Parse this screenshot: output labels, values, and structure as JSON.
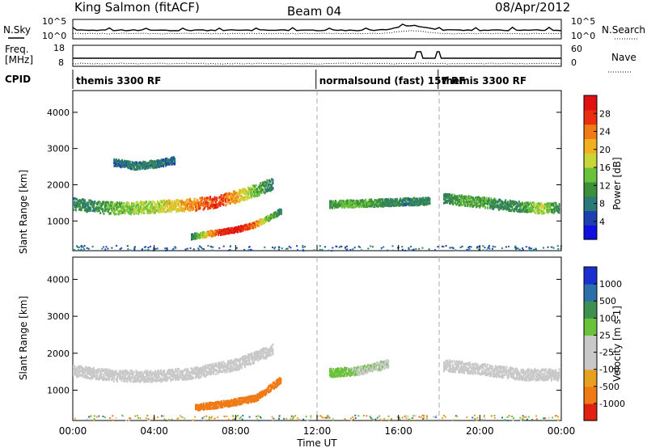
{
  "header": {
    "title": "King Salmon (fitACF)",
    "beam": "Beam 04",
    "date": "08/Apr/2012"
  },
  "aux_panels": {
    "nsky_label": "N.Sky",
    "nsearch_label": "N.Search",
    "freq_label_1": "Freq.",
    "freq_label_2": "[MHz]",
    "nave_label": "Nave",
    "cpid_label": "CPID",
    "noise_ticks_left": [
      "10^5",
      "10^0"
    ],
    "noise_ticks_right": [
      "10^5",
      "10^0"
    ],
    "freq_ticks": [
      "18",
      "8"
    ],
    "nave_ticks": [
      "60",
      "0"
    ]
  },
  "cpid_segments": [
    {
      "label": "themis 3300 RF",
      "start_hour": 0.0
    },
    {
      "label": "normalsound (fast) 157 RF",
      "start_hour": 11.95
    },
    {
      "label": "themis 3300 RF",
      "start_hour": 17.95
    }
  ],
  "axes": {
    "x_label": "Time UT",
    "x_ticks": [
      "00:00",
      "04:00",
      "08:00",
      "12:00",
      "16:00",
      "20:00",
      "00:00"
    ],
    "y_label": "Slant Range [km]",
    "y_ticks": [
      "1000",
      "2000",
      "3000",
      "4000"
    ]
  },
  "colorbars": {
    "power": {
      "label": "Power [dB]",
      "ticks": [
        "4",
        "8",
        "12",
        "16",
        "20",
        "24",
        "28"
      ],
      "colors": [
        "#1010e0",
        "#1e3fb0",
        "#2a7a78",
        "#3d8f3d",
        "#6ac23a",
        "#c8d63a",
        "#f0b020",
        "#f07a15",
        "#e83010",
        "#e01010"
      ]
    },
    "velocity": {
      "label": "Velocity [m s-1]",
      "ticks": [
        "1000",
        "500",
        "100",
        "25",
        "-25",
        "-100",
        "-500",
        "-1000"
      ],
      "colors": [
        "#1a2fd0",
        "#2d6fa8",
        "#3e9050",
        "#6ac23a",
        "#c9c9c9",
        "#c9c9c9",
        "#e8a020",
        "#f07a15",
        "#e02010"
      ]
    }
  },
  "chart_data": {
    "type": "heatmap",
    "x_range_hours": [
      0,
      24
    ],
    "y_range_km": [
      180,
      4600
    ],
    "dashed_lines_hours": [
      12,
      18
    ],
    "grid": false,
    "power_regions": [
      {
        "name": "band-main",
        "t": [
          0.0,
          1.0,
          2.0,
          3.0,
          4.0,
          5.0,
          6.0,
          7.0,
          8.0,
          9.0,
          9.8
        ],
        "r": [
          1500,
          1420,
          1380,
          1390,
          1420,
          1450,
          1480,
          1560,
          1700,
          1880,
          2050
        ],
        "w": 330,
        "power": [
          8,
          10,
          13,
          14,
          16,
          18,
          22,
          26,
          20,
          12,
          8
        ]
      },
      {
        "name": "band-lower",
        "t": [
          5.8,
          6.5,
          7.2,
          8.0,
          8.8,
          9.5,
          10.2
        ],
        "r": [
          600,
          660,
          720,
          790,
          900,
          1080,
          1300
        ],
        "w": 150,
        "power": [
          8,
          18,
          26,
          28,
          24,
          14,
          8
        ]
      },
      {
        "name": "band-upper",
        "t": [
          2.0,
          3.0,
          4.0,
          5.0
        ],
        "r": [
          2650,
          2550,
          2600,
          2700
        ],
        "w": 200,
        "power": [
          6,
          8,
          8,
          6
        ]
      },
      {
        "name": "patch-1400",
        "t": [
          12.6,
          13.5,
          14.5,
          15.5,
          16.5,
          17.5
        ],
        "r": [
          1480,
          1500,
          1520,
          1540,
          1560,
          1580
        ],
        "w": 200,
        "power": [
          10,
          13,
          12,
          9,
          8,
          10
        ]
      },
      {
        "name": "band-evening",
        "t": [
          18.2,
          19.0,
          20.0,
          21.0,
          22.0,
          23.0,
          23.9
        ],
        "r": [
          1650,
          1600,
          1550,
          1480,
          1420,
          1380,
          1400
        ],
        "w": 280,
        "power": [
          8,
          12,
          12,
          9,
          10,
          16,
          9
        ]
      }
    ],
    "velocity_regions": [
      {
        "name": "vel-main",
        "t": [
          0.0,
          2.0,
          4.0,
          6.0,
          8.0,
          9.8
        ],
        "r": [
          1550,
          1420,
          1400,
          1500,
          1720,
          2120
        ],
        "w": 300,
        "velocity": [
          0,
          0,
          0,
          0,
          0,
          0
        ]
      },
      {
        "name": "vel-lower",
        "t": [
          6.0,
          7.5,
          9.0,
          10.2
        ],
        "r": [
          560,
          660,
          820,
          1300
        ],
        "w": 170,
        "velocity": [
          -200,
          -250,
          -220,
          -150
        ]
      },
      {
        "name": "vel-evening",
        "t": [
          18.2,
          20.0,
          22.0,
          23.9
        ],
        "r": [
          1700,
          1600,
          1450,
          1450
        ],
        "w": 300,
        "velocity": [
          0,
          0,
          0,
          0
        ]
      },
      {
        "name": "vel-evening-patch",
        "t": [
          12.6,
          14.0,
          15.5
        ],
        "r": [
          1500,
          1550,
          1750
        ],
        "w": 220,
        "velocity": [
          60,
          20,
          10
        ]
      }
    ]
  }
}
